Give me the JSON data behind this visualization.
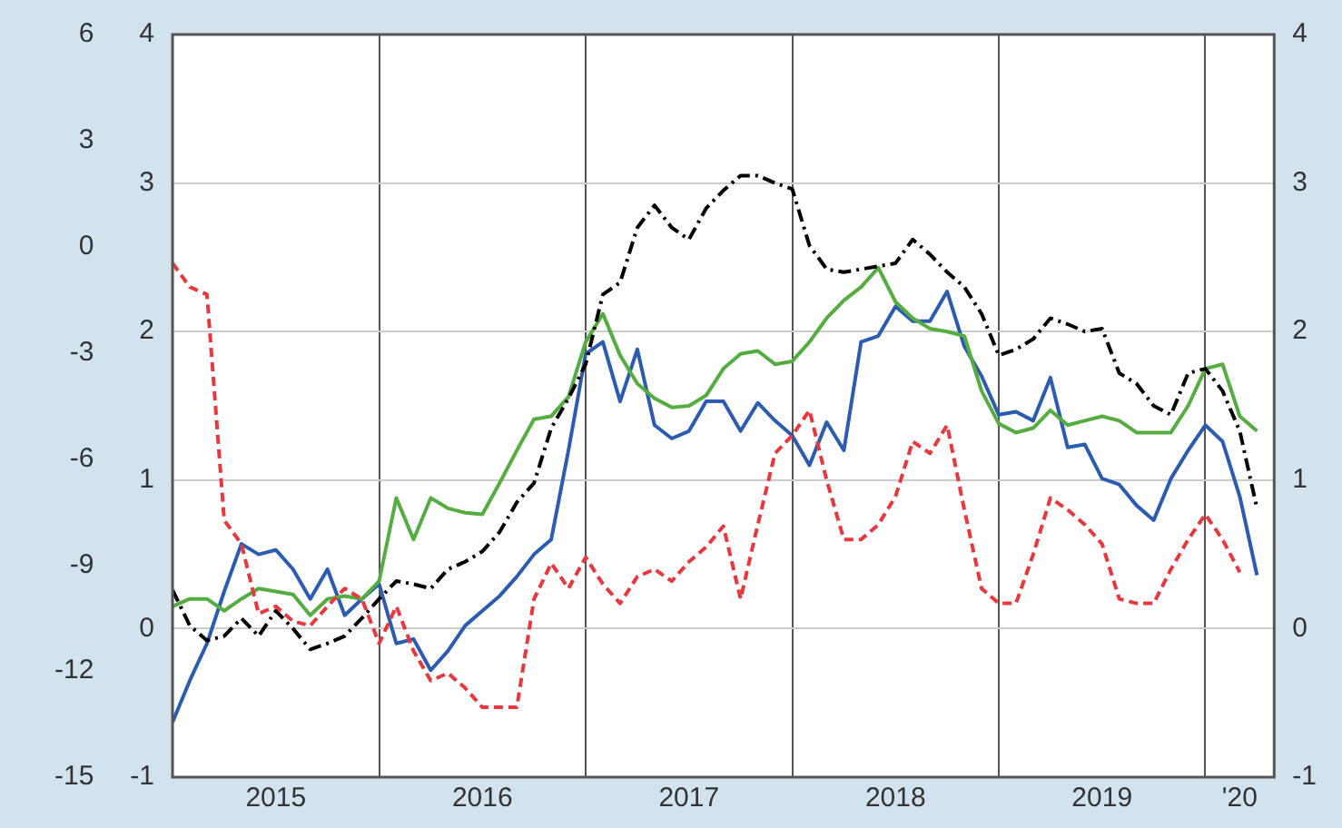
{
  "chart_data": {
    "type": "line",
    "x": [
      "2015-01",
      "2015-02",
      "2015-03",
      "2015-04",
      "2015-05",
      "2015-06",
      "2015-07",
      "2015-08",
      "2015-09",
      "2015-10",
      "2015-11",
      "2015-12",
      "2016-01",
      "2016-02",
      "2016-03",
      "2016-04",
      "2016-05",
      "2016-06",
      "2016-07",
      "2016-08",
      "2016-09",
      "2016-10",
      "2016-11",
      "2016-12",
      "2017-01",
      "2017-02",
      "2017-03",
      "2017-04",
      "2017-05",
      "2017-06",
      "2017-07",
      "2017-08",
      "2017-09",
      "2017-10",
      "2017-11",
      "2017-12",
      "2018-01",
      "2018-02",
      "2018-03",
      "2018-04",
      "2018-05",
      "2018-06",
      "2018-07",
      "2018-08",
      "2018-09",
      "2018-10",
      "2018-11",
      "2018-12",
      "2019-01",
      "2019-02",
      "2019-03",
      "2019-04",
      "2019-05",
      "2019-06",
      "2019-07",
      "2019-08",
      "2019-09",
      "2019-10",
      "2019-11",
      "2019-12",
      "2020-01",
      "2020-02",
      "2020-03",
      "2020-04"
    ],
    "series": [
      {
        "color": "#e8383d",
        "line_style": "dashed",
        "values": [
          2.46,
          2.3,
          2.25,
          0.73,
          0.57,
          0.1,
          0.15,
          0.05,
          0.02,
          0.15,
          0.27,
          0.2,
          -0.1,
          0.15,
          -0.15,
          -0.35,
          -0.3,
          -0.4,
          -0.53,
          -0.53,
          -0.53,
          0.2,
          0.44,
          0.27,
          0.48,
          0.3,
          0.17,
          0.35,
          0.4,
          0.32,
          0.45,
          0.55,
          0.69,
          0.2,
          0.7,
          1.18,
          1.3,
          1.47,
          1.0,
          0.6,
          0.6,
          0.7,
          0.89,
          1.26,
          1.18,
          1.37,
          0.8,
          0.27,
          0.17,
          0.17,
          0.5,
          0.88,
          0.8,
          0.7,
          0.57,
          0.2,
          0.17,
          0.17,
          0.4,
          0.6,
          0.77,
          0.6,
          0.38,
          null
        ]
      },
      {
        "color": "#000000",
        "line_style": "dotted",
        "values": [
          0.26,
          0.02,
          -0.08,
          -0.05,
          0.07,
          -0.05,
          0.12,
          0.0,
          -0.14,
          -0.1,
          -0.05,
          0.07,
          0.2,
          0.32,
          0.3,
          0.27,
          0.4,
          0.45,
          0.52,
          0.65,
          0.85,
          0.98,
          1.35,
          1.55,
          1.78,
          2.25,
          2.33,
          2.7,
          2.85,
          2.7,
          2.62,
          2.83,
          2.95,
          3.05,
          3.05,
          3.0,
          2.96,
          2.58,
          2.42,
          2.4,
          2.42,
          2.44,
          2.46,
          2.62,
          2.52,
          2.4,
          2.3,
          2.12,
          1.84,
          1.88,
          1.95,
          2.09,
          2.05,
          2.0,
          2.02,
          1.72,
          1.65,
          1.5,
          1.44,
          1.72,
          1.75,
          1.6,
          1.33,
          0.81
        ]
      },
      {
        "color": "#55ad42",
        "line_style": "solid",
        "values": [
          0.15,
          0.2,
          0.2,
          0.12,
          0.2,
          0.27,
          0.25,
          0.23,
          0.09,
          0.2,
          0.22,
          0.2,
          0.32,
          0.88,
          0.6,
          0.88,
          0.81,
          0.78,
          0.77,
          0.98,
          1.2,
          1.41,
          1.43,
          1.56,
          1.93,
          2.12,
          1.84,
          1.65,
          1.55,
          1.49,
          1.5,
          1.57,
          1.75,
          1.85,
          1.87,
          1.78,
          1.8,
          1.93,
          2.09,
          2.21,
          2.3,
          2.43,
          2.2,
          2.09,
          2.02,
          2.0,
          1.97,
          1.6,
          1.38,
          1.32,
          1.35,
          1.47,
          1.37,
          1.4,
          1.43,
          1.4,
          1.32,
          1.32,
          1.32,
          1.5,
          1.75,
          1.78,
          1.43,
          1.33
        ]
      },
      {
        "color": "#2b5cb0",
        "line_style": "solid",
        "values": [
          -0.63,
          -0.35,
          -0.1,
          0.25,
          0.57,
          0.5,
          0.53,
          0.4,
          0.2,
          0.4,
          0.09,
          0.2,
          0.3,
          -0.1,
          -0.07,
          -0.28,
          -0.15,
          0.02,
          0.12,
          0.22,
          0.35,
          0.5,
          0.6,
          1.2,
          1.85,
          1.93,
          1.53,
          1.88,
          1.37,
          1.28,
          1.33,
          1.53,
          1.53,
          1.33,
          1.52,
          1.4,
          1.3,
          1.1,
          1.39,
          1.2,
          1.93,
          1.97,
          2.17,
          2.07,
          2.07,
          2.27,
          1.9,
          1.7,
          1.44,
          1.46,
          1.4,
          1.69,
          1.22,
          1.24,
          1.01,
          0.97,
          0.83,
          0.73,
          1.01,
          1.2,
          1.37,
          1.26,
          0.89,
          0.36
        ]
      }
    ],
    "xlim": [
      "2015-01",
      "2020-05"
    ],
    "xticks": [
      {
        "value": "2016-01",
        "label": null
      },
      {
        "value": "2017-01",
        "label": null
      },
      {
        "value": "2018-01",
        "label": null
      },
      {
        "value": "2019-01",
        "label": null
      },
      {
        "value": "2020-01",
        "label": null
      },
      {
        "value": "2015-07",
        "label": "2015"
      },
      {
        "value": "2016-07",
        "label": "2016"
      },
      {
        "value": "2017-07",
        "label": "2017"
      },
      {
        "value": "2018-07",
        "label": "2018"
      },
      {
        "value": "2019-07",
        "label": "2019"
      },
      {
        "value": "2020-03",
        "label": "'20"
      }
    ],
    "ylim": [
      -1,
      4
    ],
    "yticks": [
      -1,
      0,
      1,
      2,
      3,
      4
    ],
    "y2lim": [
      -15,
      6
    ],
    "y2ticks": [
      -15,
      -12,
      -9,
      -6,
      -3,
      0,
      3,
      6
    ],
    "y3lim": [
      -1,
      4
    ],
    "y3ticks": [
      -1,
      0,
      1,
      2,
      3,
      4
    ],
    "grid": true,
    "legend": false,
    "marker": "none"
  }
}
